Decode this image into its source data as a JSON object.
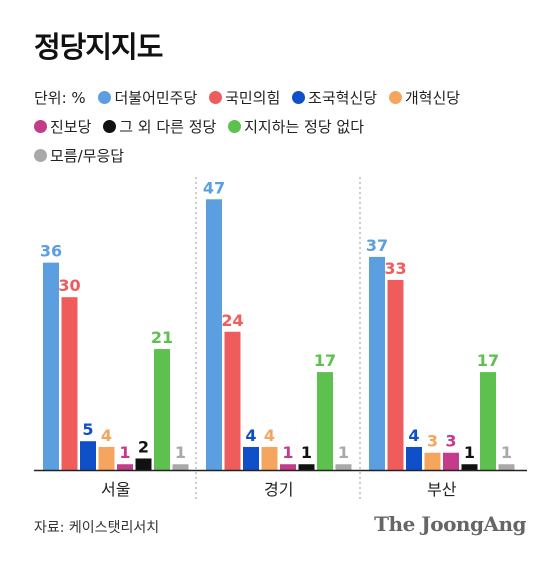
{
  "title": "정당지지도",
  "unit_label": "단위: %",
  "source": "자료: 케이스탯리서치",
  "logo": "The JoongAng",
  "chart_data": {
    "type": "bar",
    "title": "정당지지도",
    "categories": [
      "서울",
      "경기",
      "부산"
    ],
    "ylim": [
      0,
      50
    ],
    "grid": false,
    "legend": "top",
    "series": [
      {
        "name": "더불어민주당",
        "color": "#5b9fe0",
        "values": [
          36,
          47,
          37
        ]
      },
      {
        "name": "국민의힘",
        "color": "#ee5c5c",
        "values": [
          30,
          24,
          33
        ]
      },
      {
        "name": "조국혁신당",
        "color": "#0f4fc8",
        "values": [
          5,
          4,
          4
        ]
      },
      {
        "name": "개혁신당",
        "color": "#f5a55d",
        "values": [
          4,
          4,
          3
        ]
      },
      {
        "name": "진보당",
        "color": "#c43b8a",
        "values": [
          1,
          1,
          3
        ]
      },
      {
        "name": "그 외 다른 정당",
        "color": "#111111",
        "values": [
          2,
          1,
          1
        ]
      },
      {
        "name": "지지하는 정당 없다",
        "color": "#5ec04f",
        "values": [
          21,
          17,
          17
        ]
      },
      {
        "name": "모름/무응답",
        "color": "#a9a9a9",
        "values": [
          1,
          1,
          1
        ]
      }
    ]
  }
}
